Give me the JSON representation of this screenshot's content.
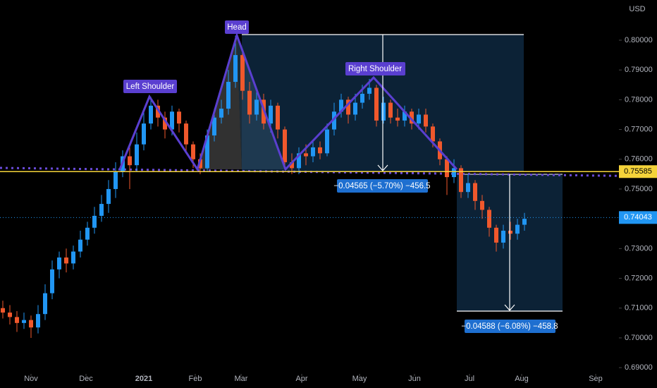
{
  "chart_data": {
    "type": "candlestick",
    "axis_label": "USD",
    "up_color": "#2196f3",
    "down_color": "#f0582c",
    "xlim": [
      -0.4,
      87.4
    ],
    "xticks": [
      {
        "value": 4.0,
        "label": "Nov"
      },
      {
        "value": 11.8,
        "label": "Dec"
      },
      {
        "value": 20.0,
        "label": "2021"
      },
      {
        "value": 27.3,
        "label": "Feb"
      },
      {
        "value": 33.8,
        "label": "Mar"
      },
      {
        "value": 42.4,
        "label": "Apr"
      },
      {
        "value": 50.6,
        "label": "May"
      },
      {
        "value": 58.4,
        "label": "Jun"
      },
      {
        "value": 66.2,
        "label": "Jul"
      },
      {
        "value": 73.6,
        "label": "Aug"
      },
      {
        "value": 84.1,
        "label": "Sep"
      }
    ],
    "ylim": [
      0.6879,
      0.8135
    ],
    "yticks": [
      {
        "value": 0.69,
        "label": "0.69000"
      },
      {
        "value": 0.7,
        "label": "0.70000"
      },
      {
        "value": 0.71,
        "label": "0.71000"
      },
      {
        "value": 0.72,
        "label": "0.72000"
      },
      {
        "value": 0.73,
        "label": "0.73000"
      },
      {
        "value": 0.74,
        "label": "0.74000"
      },
      {
        "value": 0.75,
        "label": "0.75000"
      },
      {
        "value": 0.76,
        "label": "0.76000"
      },
      {
        "value": 0.77,
        "label": "0.77000"
      },
      {
        "value": 0.78,
        "label": "0.78000"
      },
      {
        "value": 0.79,
        "label": "0.79000"
      },
      {
        "value": 0.8,
        "label": "0.80000"
      }
    ],
    "grid": false,
    "open": [
      0.71,
      0.7085,
      0.707,
      0.705,
      0.706,
      0.7035,
      0.708,
      0.715,
      0.723,
      0.727,
      0.725,
      0.729,
      0.733,
      0.737,
      0.741,
      0.745,
      0.75,
      0.756,
      0.761,
      0.758,
      0.765,
      0.772,
      0.778,
      0.774,
      0.77,
      0.776,
      0.772,
      0.765,
      0.76,
      0.757,
      0.768,
      0.774,
      0.777,
      0.786,
      0.795,
      0.783,
      0.775,
      0.78,
      0.772,
      0.778,
      0.77,
      0.759,
      0.757,
      0.762,
      0.761,
      0.764,
      0.762,
      0.77,
      0.776,
      0.78,
      0.775,
      0.779,
      0.782,
      0.784,
      0.773,
      0.779,
      0.774,
      0.773,
      0.776,
      0.772,
      0.775,
      0.771,
      0.766,
      0.76,
      0.754,
      0.757,
      0.749,
      0.752,
      0.746,
      0.743,
      0.737,
      0.732,
      0.736,
      0.735,
      0.738
    ],
    "high": [
      0.7125,
      0.711,
      0.709,
      0.7085,
      0.7075,
      0.711,
      0.718,
      0.726,
      0.729,
      0.73,
      0.731,
      0.736,
      0.739,
      0.744,
      0.748,
      0.753,
      0.759,
      0.763,
      0.764,
      0.769,
      0.776,
      0.781,
      0.78,
      0.776,
      0.778,
      0.777,
      0.773,
      0.766,
      0.762,
      0.77,
      0.777,
      0.78,
      0.79,
      0.8015,
      0.797,
      0.786,
      0.784,
      0.782,
      0.78,
      0.779,
      0.771,
      0.762,
      0.764,
      0.765,
      0.766,
      0.766,
      0.772,
      0.779,
      0.782,
      0.781,
      0.782,
      0.785,
      0.787,
      0.785,
      0.781,
      0.78,
      0.777,
      0.778,
      0.777,
      0.777,
      0.777,
      0.772,
      0.767,
      0.761,
      0.76,
      0.758,
      0.755,
      0.753,
      0.748,
      0.744,
      0.738,
      0.738,
      0.739,
      0.74,
      0.742
    ],
    "low": [
      0.7065,
      0.7045,
      0.702,
      0.703,
      0.7,
      0.7015,
      0.706,
      0.713,
      0.72,
      0.722,
      0.723,
      0.727,
      0.731,
      0.735,
      0.739,
      0.742,
      0.747,
      0.754,
      0.75,
      0.756,
      0.763,
      0.77,
      0.771,
      0.767,
      0.768,
      0.769,
      0.762,
      0.757,
      0.755,
      0.756,
      0.766,
      0.772,
      0.775,
      0.784,
      0.78,
      0.772,
      0.773,
      0.77,
      0.769,
      0.767,
      0.757,
      0.755,
      0.755,
      0.758,
      0.759,
      0.76,
      0.761,
      0.768,
      0.774,
      0.772,
      0.773,
      0.777,
      0.78,
      0.771,
      0.772,
      0.772,
      0.771,
      0.771,
      0.77,
      0.77,
      0.769,
      0.764,
      0.758,
      0.748,
      0.752,
      0.747,
      0.747,
      0.743,
      0.74,
      0.734,
      0.729,
      0.73,
      0.733,
      0.733,
      0.736
    ],
    "close": [
      0.7085,
      0.707,
      0.705,
      0.706,
      0.7035,
      0.708,
      0.715,
      0.723,
      0.727,
      0.725,
      0.729,
      0.733,
      0.737,
      0.741,
      0.745,
      0.75,
      0.756,
      0.761,
      0.758,
      0.765,
      0.772,
      0.778,
      0.774,
      0.77,
      0.776,
      0.772,
      0.765,
      0.76,
      0.757,
      0.768,
      0.774,
      0.777,
      0.786,
      0.795,
      0.783,
      0.775,
      0.78,
      0.772,
      0.778,
      0.77,
      0.759,
      0.757,
      0.762,
      0.761,
      0.764,
      0.762,
      0.77,
      0.776,
      0.78,
      0.775,
      0.779,
      0.782,
      0.784,
      0.773,
      0.779,
      0.774,
      0.773,
      0.776,
      0.772,
      0.775,
      0.771,
      0.766,
      0.76,
      0.754,
      0.757,
      0.749,
      0.752,
      0.746,
      0.743,
      0.737,
      0.732,
      0.736,
      0.735,
      0.738,
      0.74
    ],
    "pattern_labels": [
      "Left Shoulder",
      "Head",
      "Right Shoulder"
    ],
    "measurements": [
      "−0.04565 (−5.70%) −456.5",
      "−0.04588 (−6.08%) −458.8"
    ],
    "price_lines": [
      {
        "value": 0.75585,
        "color": "#f5d33a",
        "text_color": "#000000",
        "style": "solid"
      },
      {
        "value": 0.74043,
        "color": "#2196f3",
        "text_color": "#ffffff",
        "style": "dotted"
      }
    ]
  }
}
